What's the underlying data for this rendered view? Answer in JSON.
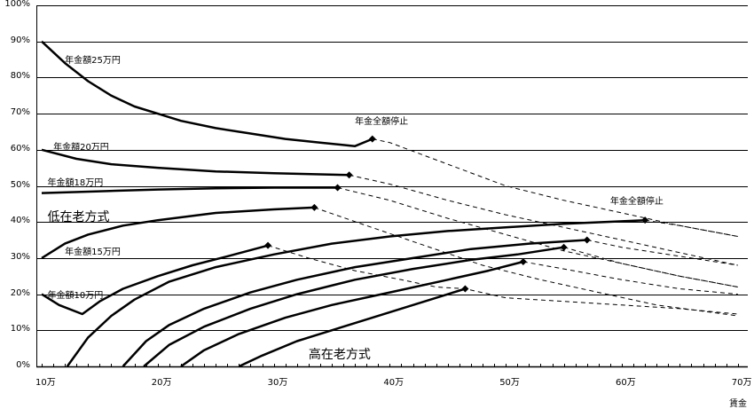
{
  "chart_data": {
    "type": "line",
    "title": "",
    "xlabel": "賃金",
    "ylabel": "",
    "xlim": [
      10,
      70
    ],
    "ylim": [
      0,
      100
    ],
    "grid": true,
    "x_tick_labels": [
      "10万",
      "20万",
      "30万",
      "40万",
      "50万",
      "60万",
      "70万"
    ],
    "y_tick_labels": [
      "0%",
      "10%",
      "20%",
      "30%",
      "40%",
      "50%",
      "60%",
      "70%",
      "80%",
      "90%",
      "100%"
    ],
    "annotations": [
      {
        "text": "年金額25万円",
        "x": 12,
        "y": 85
      },
      {
        "text": "年金額20万円",
        "x": 11,
        "y": 61
      },
      {
        "text": "年金額18万円",
        "x": 10.5,
        "y": 51
      },
      {
        "text": "低在老方式",
        "x": 10.5,
        "y": 42
      },
      {
        "text": "年金額15万円",
        "x": 12,
        "y": 32
      },
      {
        "text": "年金額10万円",
        "x": 10.5,
        "y": 20
      },
      {
        "text": "年金全額停止",
        "x": 37,
        "y": 68
      },
      {
        "text": "年金全額停止",
        "x": 59,
        "y": 46
      },
      {
        "text": "高在老方式",
        "x": 33,
        "y": 4
      }
    ],
    "series": [
      {
        "name": "年金額25万円（低在老）",
        "style": "solid",
        "points": [
          [
            10,
            90
          ],
          [
            12,
            84
          ],
          [
            14,
            79
          ],
          [
            16,
            75
          ],
          [
            18,
            72
          ],
          [
            20,
            70
          ],
          [
            22,
            68
          ],
          [
            25,
            66
          ],
          [
            28,
            64.5
          ],
          [
            31,
            63
          ],
          [
            34,
            62
          ],
          [
            37,
            61
          ],
          [
            38.5,
            63
          ]
        ]
      },
      {
        "name": "年金額25万円（停止後）",
        "style": "dashed",
        "points": [
          [
            38.5,
            63
          ],
          [
            40,
            62
          ],
          [
            45,
            56
          ],
          [
            50,
            50
          ],
          [
            55,
            46
          ],
          [
            60,
            42.5
          ],
          [
            65,
            39
          ],
          [
            70,
            36
          ]
        ]
      },
      {
        "name": "年金額20万円（低在老）",
        "style": "solid",
        "points": [
          [
            10,
            60
          ],
          [
            13,
            57.5
          ],
          [
            16,
            56
          ],
          [
            20,
            55
          ],
          [
            25,
            54
          ],
          [
            30,
            53.5
          ],
          [
            36.5,
            53
          ]
        ]
      },
      {
        "name": "年金額20万円（停止後）",
        "style": "dashed",
        "points": [
          [
            36.5,
            53
          ],
          [
            40,
            50.5
          ],
          [
            45,
            46
          ],
          [
            50,
            42
          ],
          [
            55,
            38.5
          ],
          [
            60,
            35
          ],
          [
            65,
            31.5
          ],
          [
            70,
            28
          ]
        ]
      },
      {
        "name": "年金額18万円（低在老）",
        "style": "solid",
        "points": [
          [
            10,
            48
          ],
          [
            15,
            48.5
          ],
          [
            20,
            49
          ],
          [
            25,
            49.3
          ],
          [
            30,
            49.5
          ],
          [
            35.5,
            49.5
          ]
        ]
      },
      {
        "name": "年金額18万円（停止後）",
        "style": "dashed",
        "points": [
          [
            35.5,
            49.5
          ],
          [
            40,
            46
          ],
          [
            45,
            41
          ],
          [
            50,
            36.5
          ],
          [
            55,
            32
          ],
          [
            60,
            28.5
          ],
          [
            65,
            25
          ],
          [
            70,
            22
          ]
        ]
      },
      {
        "name": "年金額15万円（低在老）",
        "style": "solid",
        "points": [
          [
            10,
            30
          ],
          [
            12,
            34
          ],
          [
            14,
            36.5
          ],
          [
            17,
            39
          ],
          [
            20,
            40.5
          ],
          [
            25,
            42.5
          ],
          [
            30,
            43.5
          ],
          [
            33.5,
            44
          ]
        ]
      },
      {
        "name": "年金額15万円（停止後）",
        "style": "dashed",
        "points": [
          [
            33.5,
            44
          ],
          [
            38,
            39
          ],
          [
            43,
            33.5
          ],
          [
            48,
            28
          ],
          [
            53,
            24
          ],
          [
            58,
            20.5
          ],
          [
            63,
            17
          ],
          [
            70,
            14
          ]
        ]
      },
      {
        "name": "年金額10万円（低在老）",
        "style": "solid",
        "points": [
          [
            10,
            20
          ],
          [
            11.5,
            17
          ],
          [
            13.5,
            14.5
          ],
          [
            15,
            18
          ],
          [
            17,
            21.5
          ],
          [
            20,
            25
          ],
          [
            23,
            28
          ],
          [
            26,
            30.5
          ],
          [
            29.5,
            33.5
          ]
        ]
      },
      {
        "name": "年金額10万円（停止後）",
        "style": "dashed",
        "points": [
          [
            29.5,
            33.5
          ],
          [
            33,
            30
          ],
          [
            37,
            26.5
          ],
          [
            41,
            24
          ],
          [
            44,
            22
          ],
          [
            46.5,
            21.5
          ],
          [
            50,
            19
          ],
          [
            55,
            18
          ],
          [
            60,
            17
          ],
          [
            65,
            16
          ],
          [
            70,
            14.5
          ]
        ]
      },
      {
        "name": "高在老 年金額25万円",
        "style": "solid",
        "points": [
          [
            12.2,
            0
          ],
          [
            14,
            8
          ],
          [
            16,
            14
          ],
          [
            18,
            18.5
          ],
          [
            21,
            23.5
          ],
          [
            25,
            27.5
          ],
          [
            30,
            31
          ],
          [
            35,
            34
          ],
          [
            40,
            36
          ],
          [
            45,
            37.5
          ],
          [
            50,
            38.5
          ],
          [
            55,
            39.5
          ],
          [
            62,
            40.5
          ]
        ]
      },
      {
        "name": "高在老 年金額25万円（停止後）",
        "style": "dashed",
        "points": [
          [
            62,
            40.5
          ],
          [
            65,
            39
          ],
          [
            70,
            36
          ]
        ]
      },
      {
        "name": "高在老 年金額20万円",
        "style": "solid",
        "points": [
          [
            17,
            0
          ],
          [
            19,
            7
          ],
          [
            21,
            11.5
          ],
          [
            24,
            16
          ],
          [
            28,
            20.5
          ],
          [
            32,
            24
          ],
          [
            37,
            27.5
          ],
          [
            42,
            30
          ],
          [
            47,
            32.5
          ],
          [
            52,
            34
          ],
          [
            57,
            35
          ]
        ]
      },
      {
        "name": "高在老 年金額20万円（停止後）",
        "style": "dashed",
        "points": [
          [
            57,
            35
          ],
          [
            60,
            33
          ],
          [
            65,
            30.5
          ],
          [
            70,
            28
          ]
        ]
      },
      {
        "name": "高在老 年金額18万円",
        "style": "solid",
        "points": [
          [
            18.8,
            0
          ],
          [
            21,
            6
          ],
          [
            24,
            11
          ],
          [
            28,
            16
          ],
          [
            32,
            20
          ],
          [
            37,
            24
          ],
          [
            42,
            27
          ],
          [
            47,
            29.5
          ],
          [
            51,
            31
          ],
          [
            55,
            33
          ]
        ]
      },
      {
        "name": "高在老 年金額18万円（停止後）",
        "style": "dashed",
        "points": [
          [
            55,
            33
          ],
          [
            60,
            28.5
          ],
          [
            65,
            25
          ],
          [
            70,
            22
          ]
        ]
      },
      {
        "name": "高在老 年金額15万円",
        "style": "solid",
        "points": [
          [
            22,
            0
          ],
          [
            24,
            4.5
          ],
          [
            27,
            9
          ],
          [
            31,
            13.5
          ],
          [
            35,
            17
          ],
          [
            40,
            20.5
          ],
          [
            45,
            24
          ],
          [
            48.5,
            26.5
          ],
          [
            51.5,
            29
          ]
        ]
      },
      {
        "name": "高在老 年金額15万円（停止後）",
        "style": "dashed",
        "points": [
          [
            51.5,
            29
          ],
          [
            55,
            27
          ],
          [
            60,
            24
          ],
          [
            65,
            21.5
          ],
          [
            70,
            20
          ]
        ]
      },
      {
        "name": "高在老 年金額10万円",
        "style": "solid",
        "points": [
          [
            27,
            0
          ],
          [
            29,
            3
          ],
          [
            32,
            7
          ],
          [
            36,
            11
          ],
          [
            40,
            15
          ],
          [
            44,
            19
          ],
          [
            46.5,
            21.5
          ]
        ]
      }
    ],
    "markers": [
      {
        "x": 38.5,
        "y": 63
      },
      {
        "x": 36.5,
        "y": 53
      },
      {
        "x": 35.5,
        "y": 49.5
      },
      {
        "x": 33.5,
        "y": 44
      },
      {
        "x": 29.5,
        "y": 33.5
      },
      {
        "x": 62,
        "y": 40.5
      },
      {
        "x": 57,
        "y": 35
      },
      {
        "x": 55,
        "y": 33
      },
      {
        "x": 51.5,
        "y": 29
      },
      {
        "x": 46.5,
        "y": 21.5
      }
    ]
  }
}
